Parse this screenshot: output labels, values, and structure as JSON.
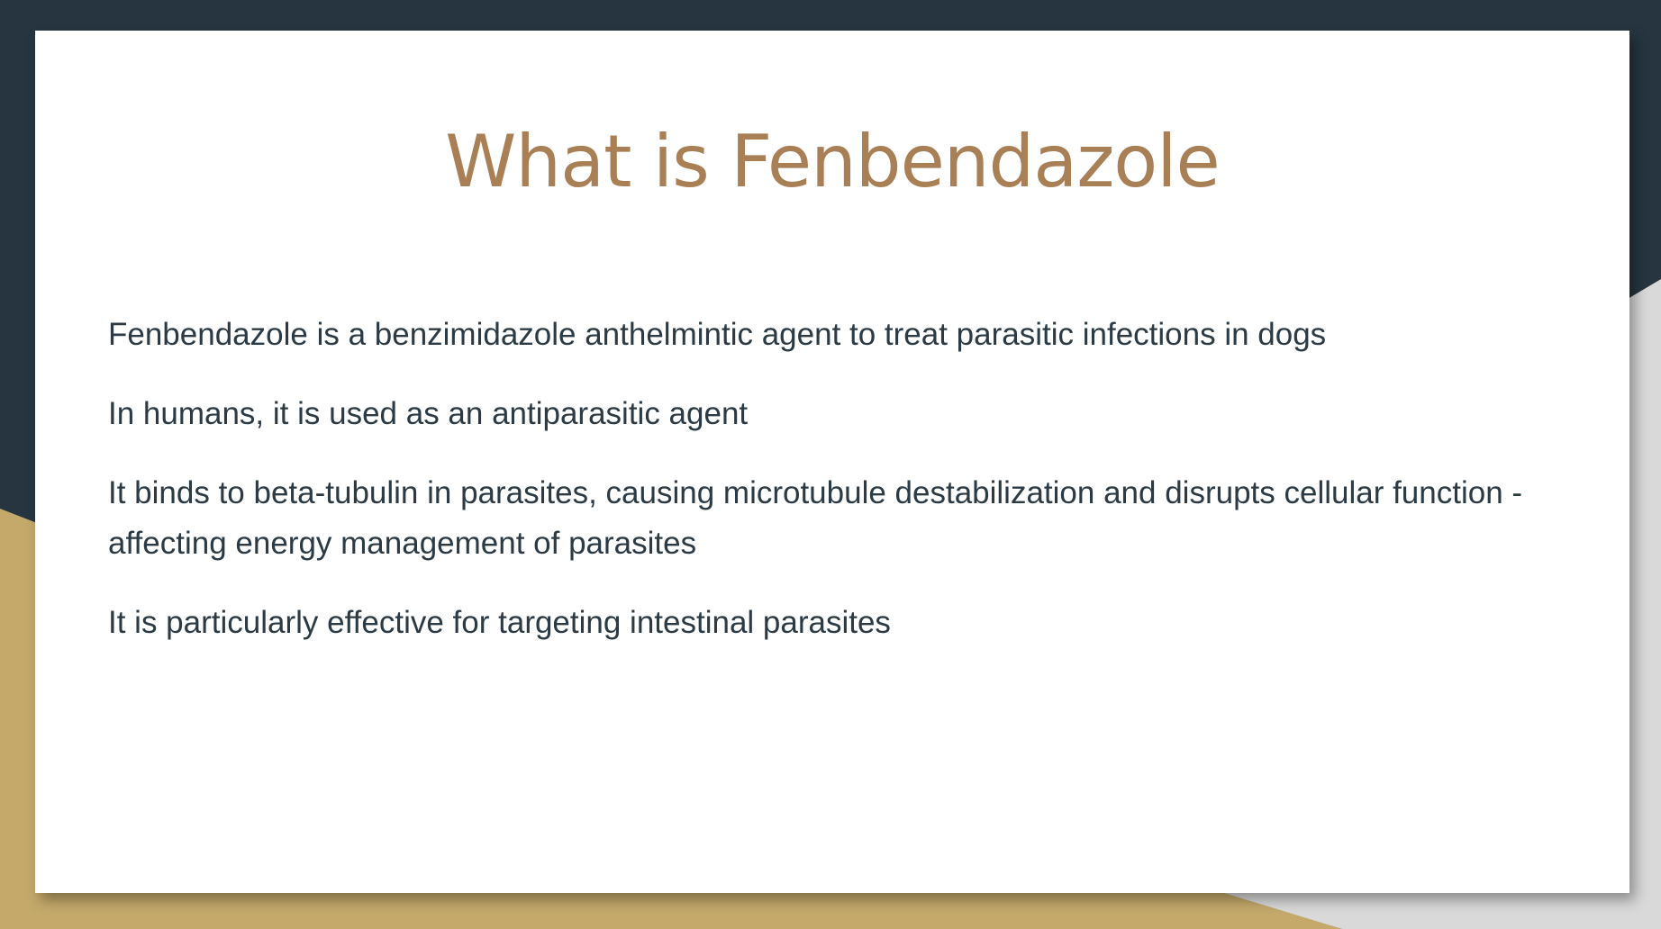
{
  "slide": {
    "title": "What is Fenbendazole",
    "bullets": [
      "Fenbendazole is a benzimidazole anthelmintic agent to treat parasitic infections in dogs",
      "In humans, it is used as an antiparasitic agent",
      "It binds to beta-tubulin in parasites, causing microtubule destabilization and disrupts cellular function - affecting energy management of parasites",
      "It is particularly effective for targeting intestinal parasites"
    ]
  },
  "theme": {
    "background_dark": "#263540",
    "accent_gold": "#c4a96b",
    "light_grey": "#d9d9d9",
    "title_color": "#a97f56",
    "text_color": "#2b3a44",
    "card_color": "#ffffff"
  }
}
